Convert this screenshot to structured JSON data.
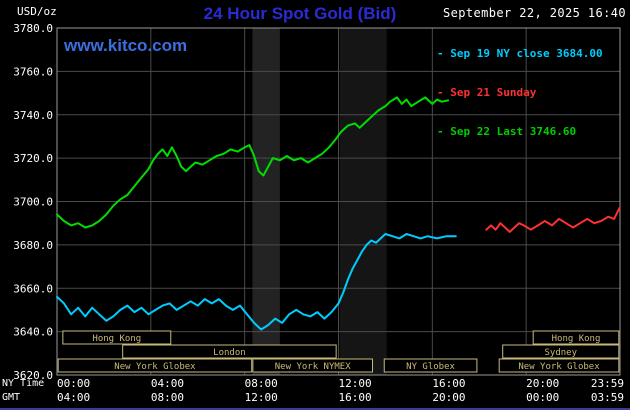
{
  "header": {
    "units_label": "USD/oz",
    "title": "24 Hour Spot Gold (Bid)",
    "title_color": "#2b2bd6",
    "datetime": "September 22, 2025 16:40",
    "datetime_color": "#ffffff",
    "watermark": "www.kitco.com",
    "watermark_color": "#3b6fe0"
  },
  "legend": {
    "position": "top-right",
    "items": [
      {
        "label": "- Sep 19 NY close 3684.00",
        "color": "#00ccff"
      },
      {
        "label": "- Sep 21 Sunday",
        "color": "#ff3030"
      },
      {
        "label": "- Sep 22 Last 3746.60",
        "color": "#00cc00"
      }
    ]
  },
  "axes": {
    "y_tick_labels": [
      "3780.0",
      "3760.0",
      "3740.0",
      "3720.0",
      "3700.0",
      "3680.0",
      "3660.0",
      "3640.0",
      "3620.0"
    ],
    "x_row1_label": "NY Time",
    "x_row2_label": "GMT",
    "x_row1_ticks": [
      "00:00",
      "04:00",
      "08:00",
      "12:00",
      "16:00",
      "20:00",
      "23:59"
    ],
    "x_row2_ticks": [
      "04:00",
      "08:00",
      "12:00",
      "16:00",
      "20:00",
      "00:00",
      "03:59"
    ],
    "tick_hours": [
      0,
      4,
      8,
      12,
      16,
      20,
      23.983
    ],
    "label_color": "#ffffff",
    "grid_color": "#4b4b4b",
    "frame_color": "#9a9a9a"
  },
  "sessions": {
    "box_color": "#c9ba7c",
    "rows": [
      {
        "name": "hong-kong-row",
        "boxes": [
          {
            "label": "Hong Kong",
            "from": 0.25,
            "to": 4.85
          },
          {
            "label": "Hong Kong",
            "from": 20.3,
            "to": 23.95
          }
        ]
      },
      {
        "name": "london-sydney-row",
        "boxes": [
          {
            "label": "London",
            "from": 2.8,
            "to": 11.9
          },
          {
            "label": "Sydney",
            "from": 19.0,
            "to": 23.95
          }
        ]
      },
      {
        "name": "new-york-row",
        "boxes": [
          {
            "label": "New York Globex",
            "from": 0.05,
            "to": 8.3
          },
          {
            "label": "New York NYMEX",
            "from": 8.35,
            "to": 13.45
          },
          {
            "label": "NY Globex",
            "from": 13.95,
            "to": 17.9
          },
          {
            "label": "New York Globex",
            "from": 18.85,
            "to": 23.95
          }
        ]
      }
    ]
  },
  "chart_data": {
    "type": "line",
    "title": "24 Hour Spot Gold (Bid)",
    "xlabel": "NY Time",
    "xlabel_secondary": "GMT",
    "ylabel": "USD/oz",
    "ylim": [
      3620,
      3780
    ],
    "xlim_hours": [
      0,
      24
    ],
    "grid": true,
    "legend_position": "top-right",
    "bands": [
      {
        "from": 8.33,
        "to": 9.5,
        "color": "#232323"
      },
      {
        "from": 12.05,
        "to": 14.05,
        "color": "#151515"
      }
    ],
    "series": [
      {
        "name": "Sep 19 NY close 3684.00",
        "color": "#00ccff",
        "points": [
          [
            0,
            3656
          ],
          [
            0.3,
            3653
          ],
          [
            0.6,
            3648
          ],
          [
            0.9,
            3651
          ],
          [
            1.2,
            3647
          ],
          [
            1.5,
            3651
          ],
          [
            1.8,
            3648
          ],
          [
            2.1,
            3645
          ],
          [
            2.4,
            3647
          ],
          [
            2.7,
            3650
          ],
          [
            3.0,
            3652
          ],
          [
            3.3,
            3649
          ],
          [
            3.6,
            3651
          ],
          [
            3.9,
            3648
          ],
          [
            4.2,
            3650
          ],
          [
            4.5,
            3652
          ],
          [
            4.8,
            3653
          ],
          [
            5.1,
            3650
          ],
          [
            5.4,
            3652
          ],
          [
            5.7,
            3654
          ],
          [
            6.0,
            3652
          ],
          [
            6.3,
            3655
          ],
          [
            6.6,
            3653
          ],
          [
            6.9,
            3655
          ],
          [
            7.2,
            3652
          ],
          [
            7.5,
            3650
          ],
          [
            7.8,
            3652
          ],
          [
            8.1,
            3648
          ],
          [
            8.4,
            3644
          ],
          [
            8.7,
            3641
          ],
          [
            9.0,
            3643
          ],
          [
            9.3,
            3646
          ],
          [
            9.6,
            3644
          ],
          [
            9.9,
            3648
          ],
          [
            10.2,
            3650
          ],
          [
            10.5,
            3648
          ],
          [
            10.8,
            3647
          ],
          [
            11.1,
            3649
          ],
          [
            11.4,
            3646
          ],
          [
            11.7,
            3649
          ],
          [
            12.0,
            3653
          ],
          [
            12.2,
            3658
          ],
          [
            12.4,
            3664
          ],
          [
            12.6,
            3669
          ],
          [
            12.8,
            3673
          ],
          [
            13.0,
            3677
          ],
          [
            13.2,
            3680
          ],
          [
            13.4,
            3682
          ],
          [
            13.6,
            3681
          ],
          [
            13.8,
            3683
          ],
          [
            14.0,
            3685
          ],
          [
            14.3,
            3684
          ],
          [
            14.6,
            3683
          ],
          [
            14.9,
            3685
          ],
          [
            15.2,
            3684
          ],
          [
            15.5,
            3683
          ],
          [
            15.8,
            3684
          ],
          [
            16.2,
            3683
          ],
          [
            16.6,
            3684
          ],
          [
            17.0,
            3684
          ]
        ]
      },
      {
        "name": "Sep 21 Sunday",
        "color": "#ff3030",
        "points": [
          [
            18.3,
            3687
          ],
          [
            18.5,
            3689
          ],
          [
            18.7,
            3687
          ],
          [
            18.9,
            3690
          ],
          [
            19.1,
            3688
          ],
          [
            19.3,
            3686
          ],
          [
            19.5,
            3688
          ],
          [
            19.7,
            3690
          ],
          [
            19.9,
            3689
          ],
          [
            20.2,
            3687
          ],
          [
            20.5,
            3689
          ],
          [
            20.8,
            3691
          ],
          [
            21.1,
            3689
          ],
          [
            21.4,
            3692
          ],
          [
            21.7,
            3690
          ],
          [
            22.0,
            3688
          ],
          [
            22.3,
            3690
          ],
          [
            22.6,
            3692
          ],
          [
            22.9,
            3690
          ],
          [
            23.2,
            3691
          ],
          [
            23.5,
            3693
          ],
          [
            23.75,
            3692
          ],
          [
            23.98,
            3697
          ]
        ]
      },
      {
        "name": "Sep 22 Last 3746.60",
        "color": "#00dd00",
        "points": [
          [
            0,
            3694
          ],
          [
            0.3,
            3691
          ],
          [
            0.6,
            3689
          ],
          [
            0.9,
            3690
          ],
          [
            1.2,
            3688
          ],
          [
            1.5,
            3689
          ],
          [
            1.8,
            3691
          ],
          [
            2.1,
            3694
          ],
          [
            2.4,
            3698
          ],
          [
            2.7,
            3701
          ],
          [
            3.0,
            3703
          ],
          [
            3.3,
            3707
          ],
          [
            3.6,
            3711
          ],
          [
            3.9,
            3715
          ],
          [
            4.1,
            3719
          ],
          [
            4.3,
            3722
          ],
          [
            4.5,
            3724
          ],
          [
            4.7,
            3721
          ],
          [
            4.9,
            3725
          ],
          [
            5.1,
            3721
          ],
          [
            5.3,
            3716
          ],
          [
            5.5,
            3714
          ],
          [
            5.7,
            3716
          ],
          [
            5.9,
            3718
          ],
          [
            6.2,
            3717
          ],
          [
            6.5,
            3719
          ],
          [
            6.8,
            3721
          ],
          [
            7.1,
            3722
          ],
          [
            7.4,
            3724
          ],
          [
            7.7,
            3723
          ],
          [
            8.0,
            3725
          ],
          [
            8.2,
            3726
          ],
          [
            8.4,
            3721
          ],
          [
            8.6,
            3714
          ],
          [
            8.8,
            3712
          ],
          [
            9.0,
            3716
          ],
          [
            9.2,
            3720
          ],
          [
            9.5,
            3719
          ],
          [
            9.8,
            3721
          ],
          [
            10.1,
            3719
          ],
          [
            10.4,
            3720
          ],
          [
            10.7,
            3718
          ],
          [
            11.0,
            3720
          ],
          [
            11.3,
            3722
          ],
          [
            11.6,
            3725
          ],
          [
            11.9,
            3729
          ],
          [
            12.1,
            3732
          ],
          [
            12.4,
            3735
          ],
          [
            12.7,
            3736
          ],
          [
            12.9,
            3734
          ],
          [
            13.1,
            3736
          ],
          [
            13.4,
            3739
          ],
          [
            13.7,
            3742
          ],
          [
            14.0,
            3744
          ],
          [
            14.2,
            3746
          ],
          [
            14.5,
            3748
          ],
          [
            14.7,
            3745
          ],
          [
            14.9,
            3747
          ],
          [
            15.1,
            3744
          ],
          [
            15.4,
            3746
          ],
          [
            15.7,
            3748
          ],
          [
            16.0,
            3745
          ],
          [
            16.2,
            3747
          ],
          [
            16.4,
            3746
          ],
          [
            16.67,
            3746.6
          ]
        ]
      }
    ]
  }
}
